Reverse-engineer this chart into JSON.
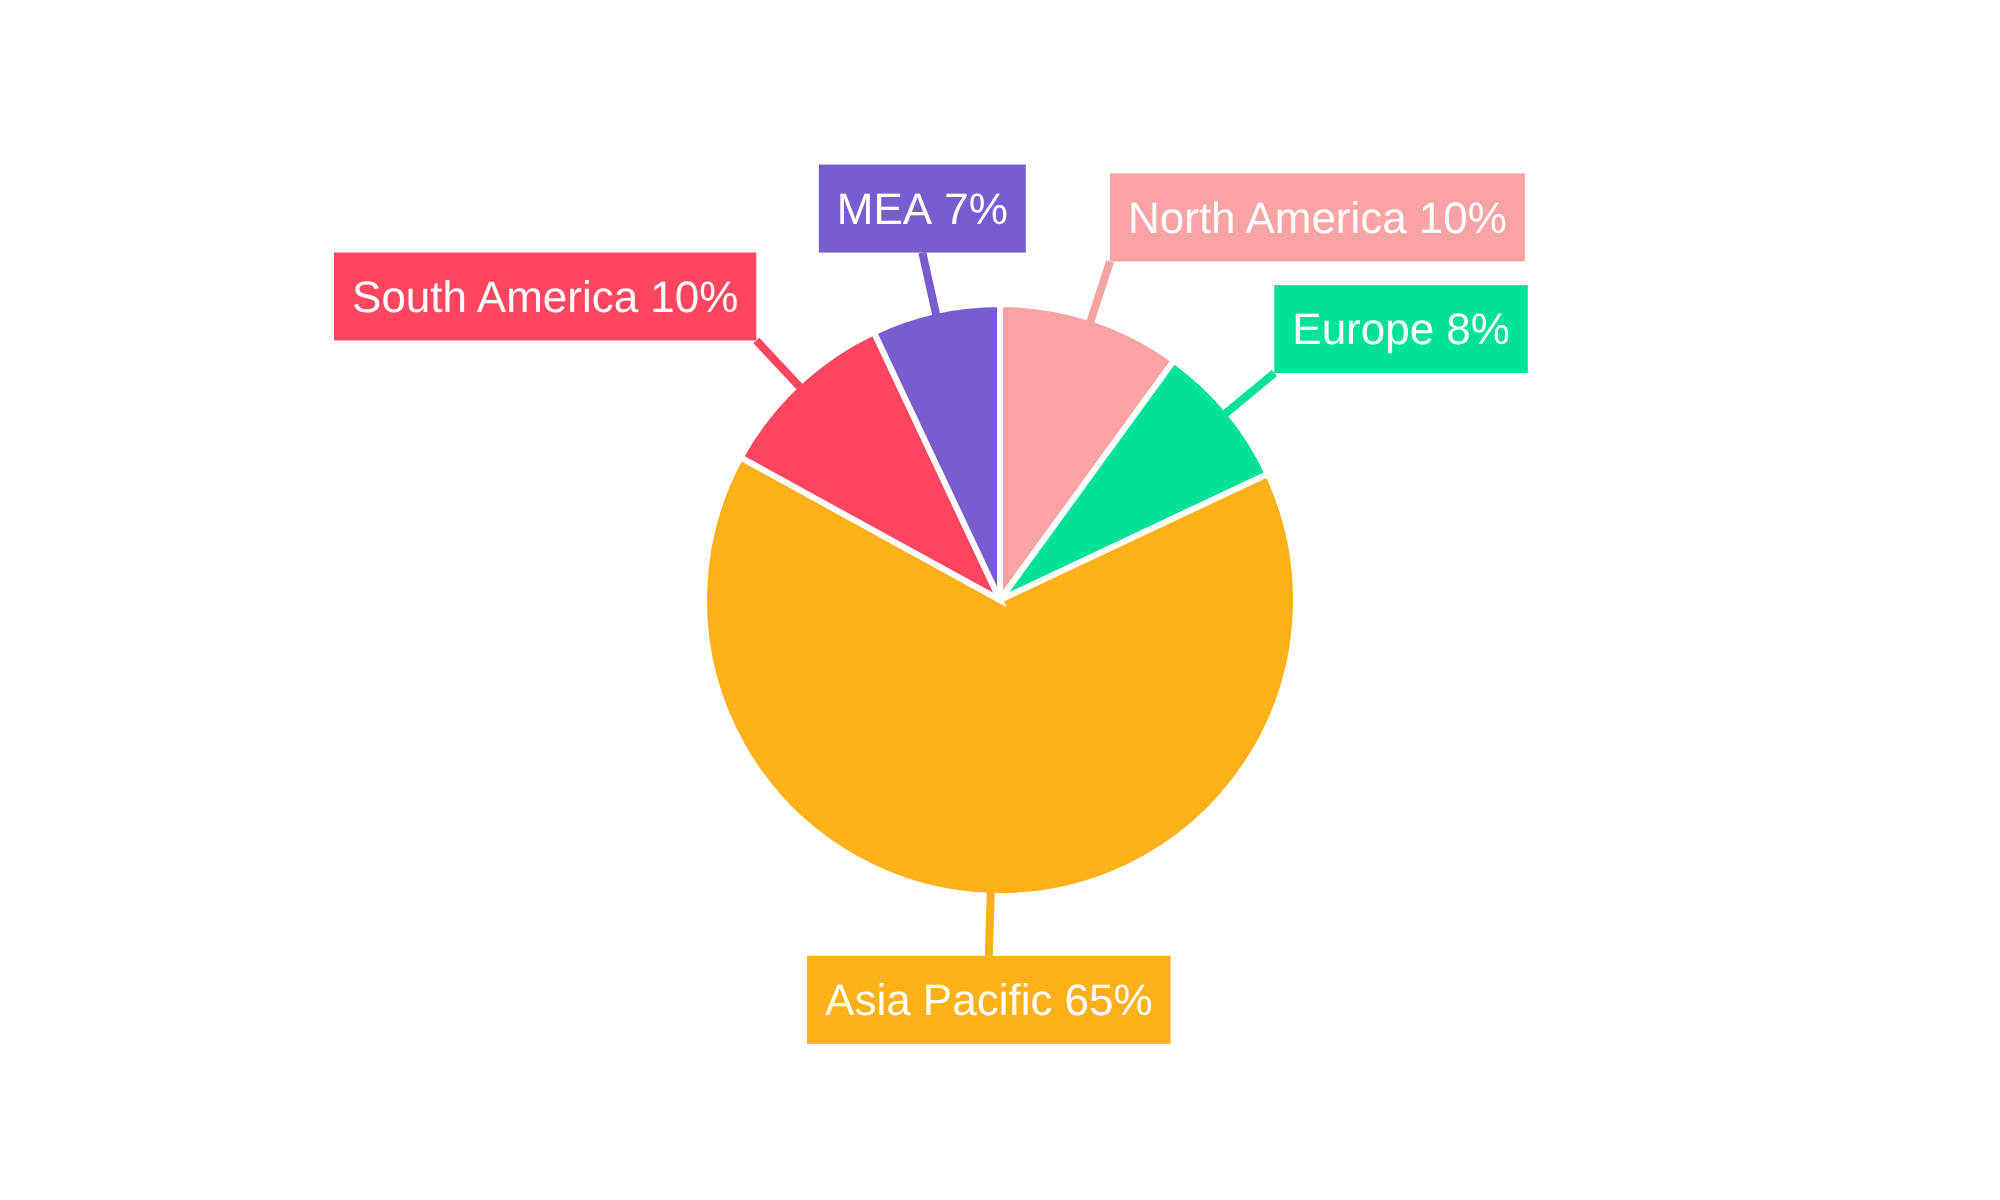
{
  "chart_data": {
    "type": "pie",
    "categories": [
      "North America",
      "Europe",
      "Asia Pacific",
      "South America",
      "MEA"
    ],
    "values": [
      10,
      8,
      65,
      10,
      7
    ],
    "value_labels": [
      "10%",
      "8%",
      "65%",
      "10%",
      "7%"
    ],
    "colors": [
      "#f9a3a4",
      "#00e396",
      "#feb019",
      "#ff4560",
      "#775dd0"
    ]
  }
}
